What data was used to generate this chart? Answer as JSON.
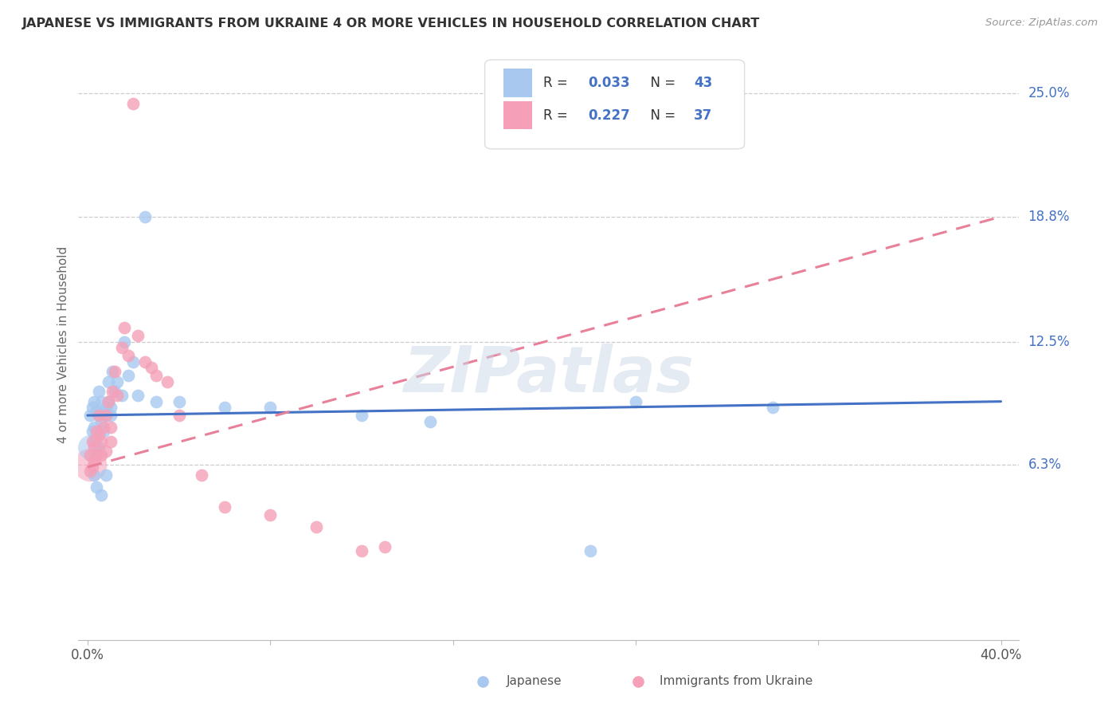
{
  "title": "JAPANESE VS IMMIGRANTS FROM UKRAINE 4 OR MORE VEHICLES IN HOUSEHOLD CORRELATION CHART",
  "source": "Source: ZipAtlas.com",
  "ylabel": "4 or more Vehicles in Household",
  "yticks": [
    "6.3%",
    "12.5%",
    "18.8%",
    "25.0%"
  ],
  "ytick_vals": [
    0.063,
    0.125,
    0.188,
    0.25
  ],
  "xlim": [
    0.0,
    0.4
  ],
  "ylim": [
    0.0,
    0.27
  ],
  "legend_r1": "0.033",
  "legend_n1": "43",
  "legend_r2": "0.227",
  "legend_n2": "37",
  "color_japanese": "#a8c8f0",
  "color_ukraine": "#f5a0b8",
  "color_line_japanese": "#4472c4",
  "color_line_ukraine": "#e8809a",
  "watermark": "ZIPatlas",
  "jp_x": [
    0.001,
    0.002,
    0.002,
    0.003,
    0.003,
    0.003,
    0.004,
    0.004,
    0.005,
    0.005,
    0.005,
    0.006,
    0.006,
    0.007,
    0.007,
    0.008,
    0.008,
    0.009,
    0.009,
    0.01,
    0.01,
    0.011,
    0.012,
    0.013,
    0.015,
    0.016,
    0.018,
    0.02,
    0.022,
    0.025,
    0.03,
    0.04,
    0.06,
    0.08,
    0.12,
    0.15,
    0.22,
    0.24,
    0.3,
    0.003,
    0.004,
    0.006,
    0.008
  ],
  "jp_y": [
    0.088,
    0.08,
    0.092,
    0.095,
    0.082,
    0.075,
    0.09,
    0.078,
    0.088,
    0.1,
    0.072,
    0.085,
    0.095,
    0.09,
    0.08,
    0.092,
    0.088,
    0.105,
    0.095,
    0.092,
    0.088,
    0.11,
    0.1,
    0.105,
    0.098,
    0.125,
    0.108,
    0.115,
    0.098,
    0.188,
    0.095,
    0.095,
    0.092,
    0.092,
    0.088,
    0.085,
    0.02,
    0.095,
    0.092,
    0.058,
    0.052,
    0.048,
    0.058
  ],
  "uk_x": [
    0.001,
    0.001,
    0.002,
    0.002,
    0.003,
    0.003,
    0.004,
    0.004,
    0.005,
    0.005,
    0.006,
    0.006,
    0.007,
    0.008,
    0.008,
    0.009,
    0.01,
    0.01,
    0.011,
    0.012,
    0.013,
    0.015,
    0.016,
    0.018,
    0.02,
    0.022,
    0.025,
    0.028,
    0.03,
    0.035,
    0.04,
    0.05,
    0.06,
    0.08,
    0.1,
    0.12,
    0.13
  ],
  "uk_y": [
    0.068,
    0.06,
    0.075,
    0.062,
    0.072,
    0.065,
    0.08,
    0.068,
    0.078,
    0.088,
    0.075,
    0.068,
    0.082,
    0.088,
    0.07,
    0.095,
    0.082,
    0.075,
    0.1,
    0.11,
    0.098,
    0.122,
    0.132,
    0.118,
    0.245,
    0.128,
    0.115,
    0.112,
    0.108,
    0.105,
    0.088,
    0.058,
    0.042,
    0.038,
    0.032,
    0.02,
    0.022
  ],
  "jp_line_x": [
    0.0,
    0.4
  ],
  "jp_line_y": [
    0.088,
    0.095
  ],
  "uk_line_x": [
    0.0,
    0.4
  ],
  "uk_line_y": [
    0.062,
    0.188
  ]
}
